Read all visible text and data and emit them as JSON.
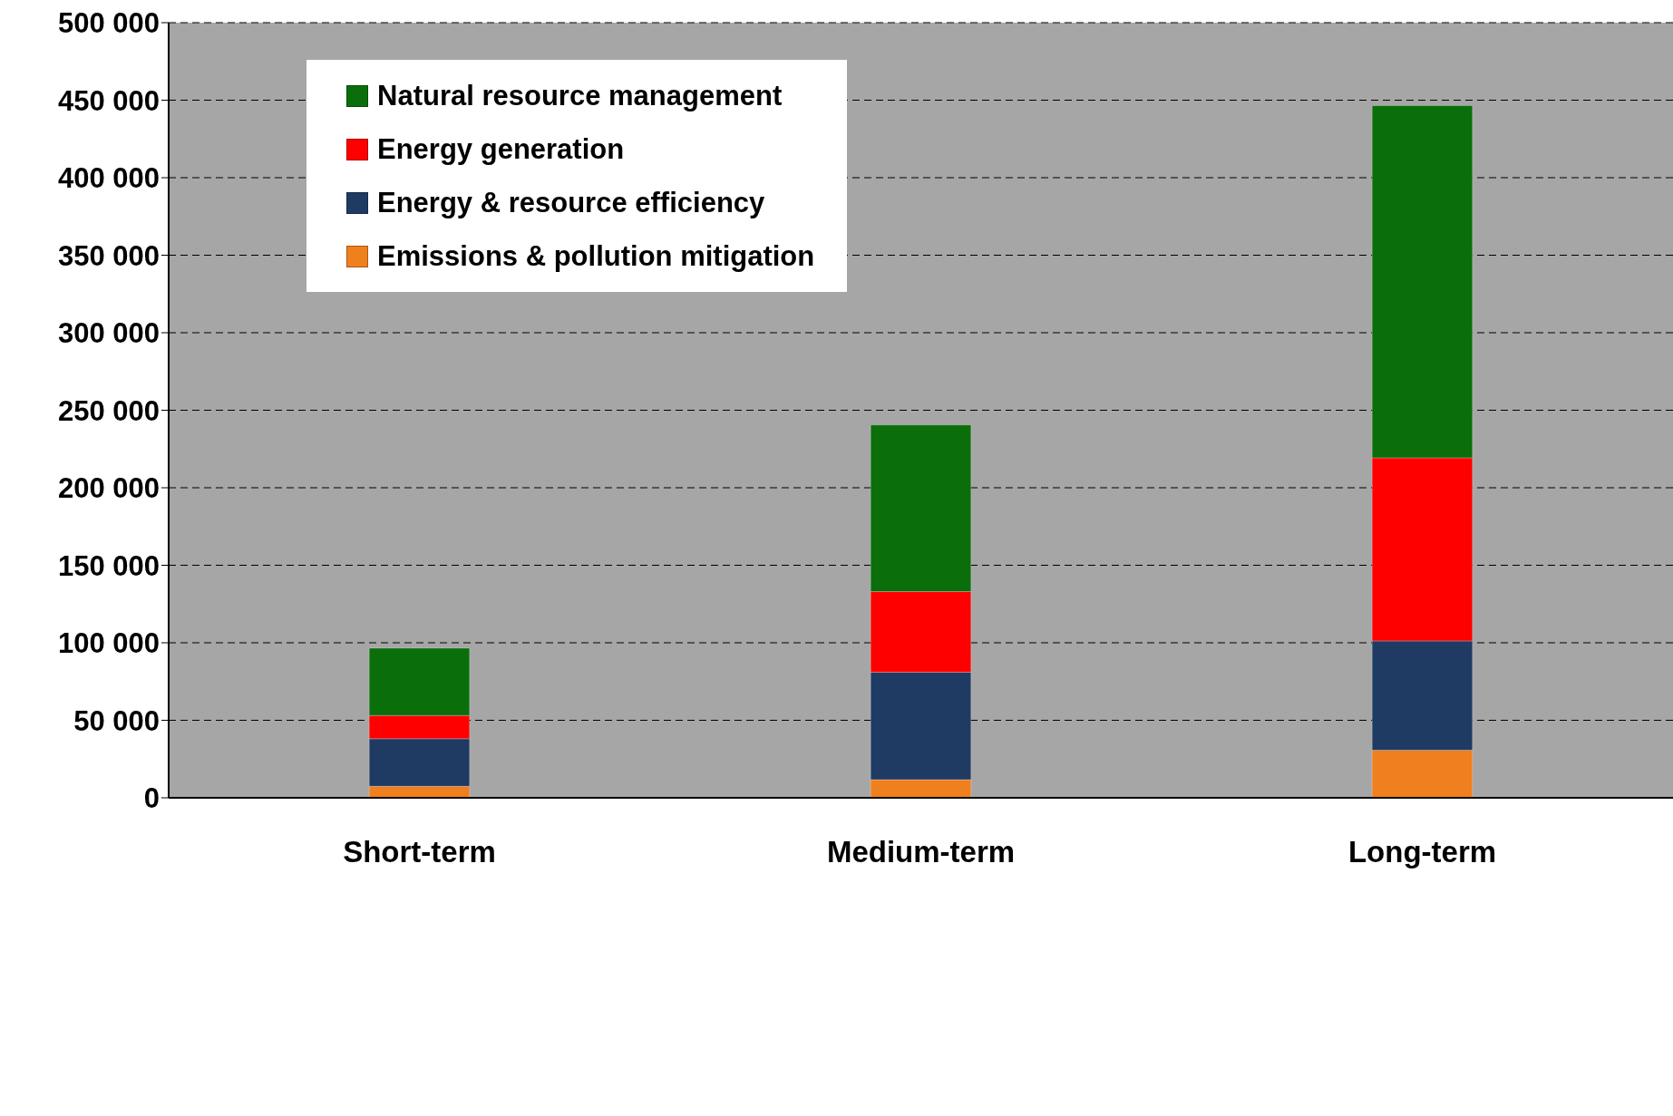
{
  "chart_data": {
    "type": "bar",
    "stacked": true,
    "categories": [
      "Short-term",
      "Medium-term",
      "Long-term"
    ],
    "series": [
      {
        "name": "Emissions & pollution mitigation",
        "color": "#f07f1e",
        "values": [
          7400,
          11700,
          30700
        ]
      },
      {
        "name": "Energy & resource efficiency",
        "color": "#1f3b63",
        "values": [
          30700,
          69300,
          70500
        ]
      },
      {
        "name": "Energy generation",
        "color": "#ff0000",
        "values": [
          15000,
          52000,
          118100
        ]
      },
      {
        "name": "Natural resource management",
        "color": "#0a6e0a",
        "values": [
          43400,
          107500,
          227200
        ]
      }
    ],
    "ylim": [
      0,
      500000
    ],
    "yticks": [
      {
        "value": 0,
        "label": "0"
      },
      {
        "value": 50000,
        "label": "50 000"
      },
      {
        "value": 100000,
        "label": "100 000"
      },
      {
        "value": 150000,
        "label": "150 000"
      },
      {
        "value": 200000,
        "label": "200 000"
      },
      {
        "value": 250000,
        "label": "250 000"
      },
      {
        "value": 300000,
        "label": "300 000"
      },
      {
        "value": 350000,
        "label": "350 000"
      },
      {
        "value": 400000,
        "label": "400 000"
      },
      {
        "value": 450000,
        "label": "450 000"
      },
      {
        "value": 500000,
        "label": "500 000"
      }
    ],
    "grid": "y",
    "legend": "top left"
  }
}
